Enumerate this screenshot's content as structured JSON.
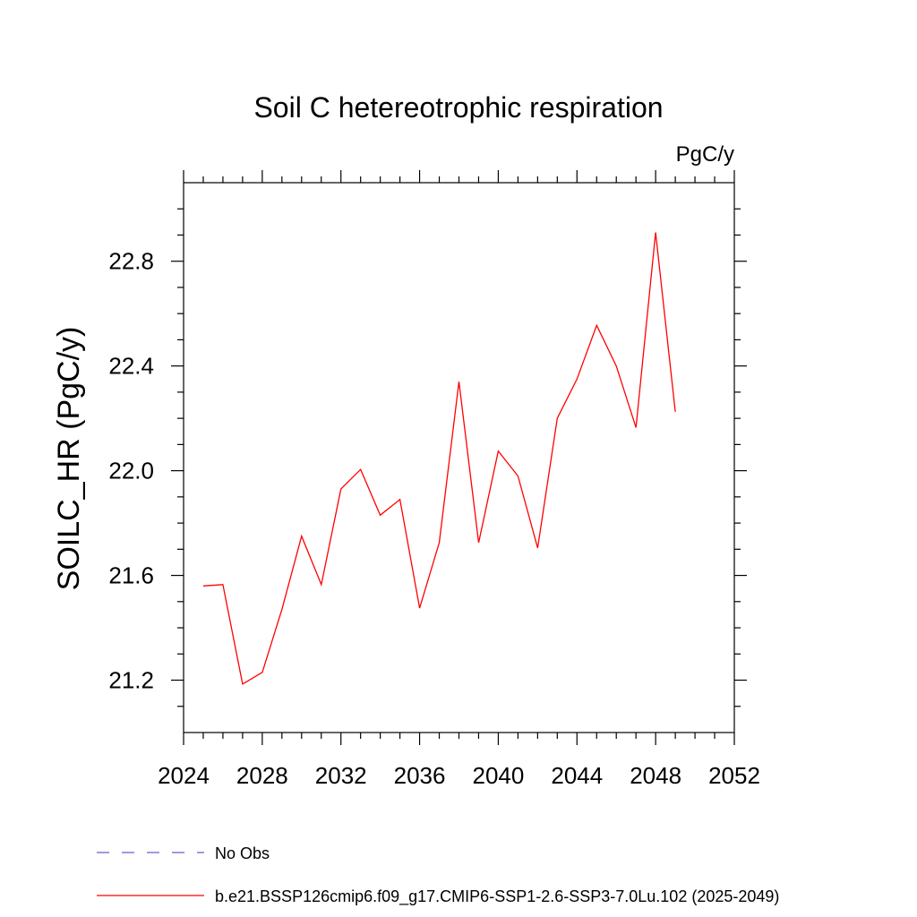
{
  "chart_data": {
    "type": "line",
    "title": "Soil C hetereotrophic respiration",
    "units": "PgC/y",
    "ylabel": "SOILC_HR  (PgC/y)",
    "xlabel": "",
    "xlim": [
      2024,
      2052
    ],
    "ylim": [
      21.0,
      23.1
    ],
    "x_major_ticks": [
      2024,
      2028,
      2032,
      2036,
      2040,
      2044,
      2048,
      2052
    ],
    "x_tick_labels": [
      "2024",
      "2028",
      "2032",
      "2036",
      "2040",
      "2044",
      "2048",
      "2052"
    ],
    "y_major_ticks": [
      21.2,
      21.6,
      22.0,
      22.4,
      22.8
    ],
    "y_tick_labels": [
      "21.2",
      "21.6",
      "22.0",
      "22.4",
      "22.8"
    ],
    "grid": false,
    "legend_position": "bottom",
    "series": [
      {
        "name": "b.e21.BSSP126cmip6.f09_g17.CMIP6-SSP1-2.6-SSP3-7.0Lu.102 (2025-2049)",
        "color": "#ff0000",
        "style": "solid",
        "x": [
          2025,
          2026,
          2027,
          2028,
          2029,
          2030,
          2031,
          2032,
          2033,
          2034,
          2035,
          2036,
          2037,
          2038,
          2039,
          2040,
          2041,
          2042,
          2043,
          2044,
          2045,
          2046,
          2047,
          2048,
          2049
        ],
        "y": [
          21.56,
          21.565,
          21.185,
          21.23,
          21.47,
          21.75,
          21.565,
          21.93,
          22.005,
          21.83,
          21.89,
          21.475,
          21.725,
          22.34,
          21.725,
          22.075,
          21.98,
          21.705,
          22.2,
          22.35,
          22.555,
          22.4,
          22.165,
          22.91,
          22.225
        ]
      }
    ],
    "legend": [
      {
        "label": "No Obs",
        "color": "#6a5acd",
        "style": "dashed"
      },
      {
        "label": "b.e21.BSSP126cmip6.f09_g17.CMIP6-SSP1-2.6-SSP3-7.0Lu.102 (2025-2049)",
        "color": "#ff0000",
        "style": "solid"
      }
    ]
  }
}
